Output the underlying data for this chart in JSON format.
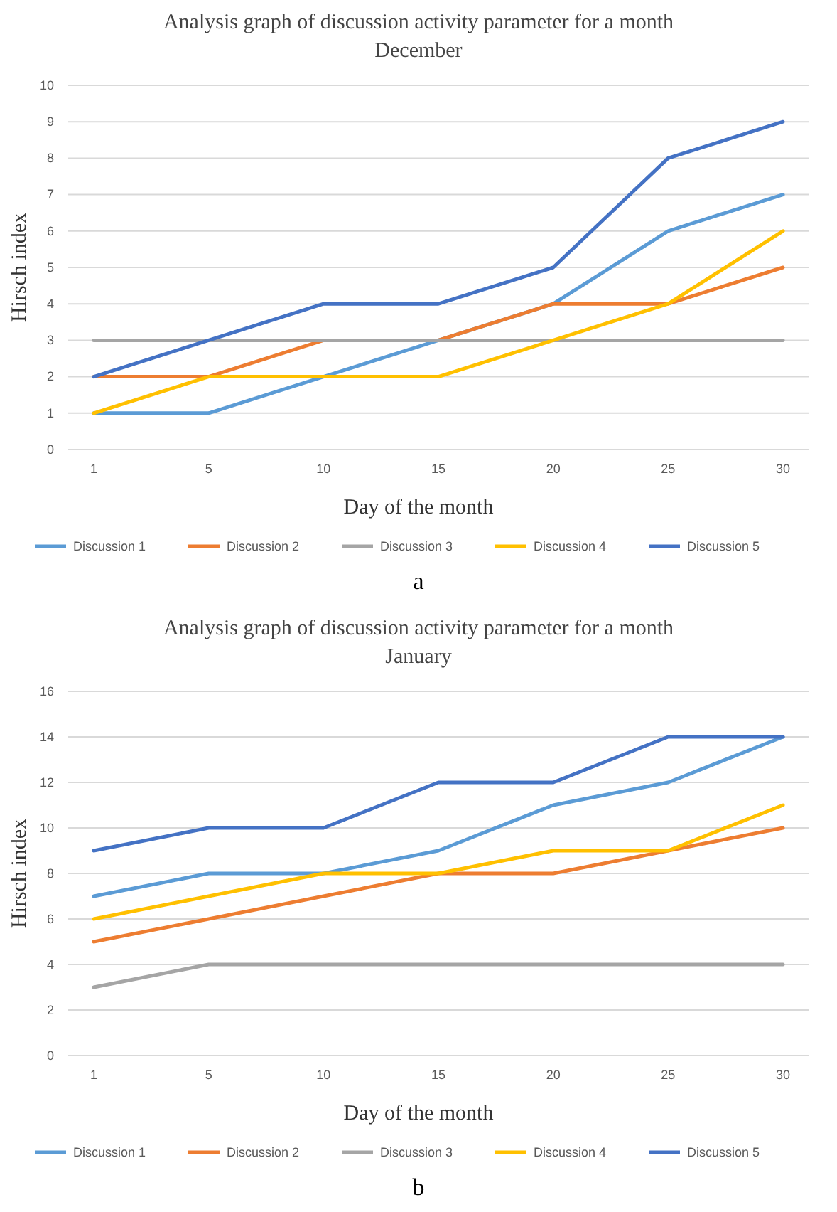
{
  "chart_data": [
    {
      "type": "line",
      "title": "Analysis graph of discussion activity parameter for a month",
      "subtitle": "December",
      "xlabel": "Day of the month",
      "ylabel": "Hirsch index",
      "categories": [
        "1",
        "5",
        "10",
        "15",
        "20",
        "25",
        "30"
      ],
      "ylim": [
        0,
        10
      ],
      "yticks": [
        0,
        1,
        2,
        3,
        4,
        5,
        6,
        7,
        8,
        9,
        10
      ],
      "grid": "y",
      "legend": "bottom",
      "marker": "none",
      "annotations": [
        "a"
      ],
      "series": [
        {
          "name": "Discussion 1",
          "color": "#5b9bd5",
          "values": [
            1,
            1,
            2,
            3,
            4,
            6,
            7
          ]
        },
        {
          "name": "Discussion 2",
          "color": "#ed7d31",
          "values": [
            2,
            2,
            3,
            3,
            4,
            4,
            5
          ]
        },
        {
          "name": "Discussion 3",
          "color": "#a5a5a5",
          "values": [
            3,
            3,
            3,
            3,
            3,
            3,
            3
          ]
        },
        {
          "name": "Discussion 4",
          "color": "#ffc000",
          "values": [
            1,
            2,
            2,
            2,
            3,
            4,
            6
          ]
        },
        {
          "name": "Discussion 5",
          "color": "#4472c4",
          "values": [
            2,
            3,
            4,
            4,
            5,
            8,
            9
          ]
        }
      ]
    },
    {
      "type": "line",
      "title": "Analysis graph of discussion activity parameter for a month",
      "subtitle": "January",
      "xlabel": "Day of the month",
      "ylabel": "Hirsch index",
      "categories": [
        "1",
        "5",
        "10",
        "15",
        "20",
        "25",
        "30"
      ],
      "ylim": [
        0,
        16
      ],
      "yticks": [
        0,
        2,
        4,
        6,
        8,
        10,
        12,
        14,
        16
      ],
      "grid": "y",
      "legend": "bottom",
      "marker": "none",
      "annotations": [
        "b"
      ],
      "series": [
        {
          "name": "Discussion 1",
          "color": "#5b9bd5",
          "values": [
            7,
            8,
            8,
            9,
            11,
            12,
            14
          ]
        },
        {
          "name": "Discussion 2",
          "color": "#ed7d31",
          "values": [
            5,
            6,
            7,
            8,
            8,
            9,
            10
          ]
        },
        {
          "name": "Discussion 3",
          "color": "#a5a5a5",
          "values": [
            3,
            4,
            4,
            4,
            4,
            4,
            4
          ]
        },
        {
          "name": "Discussion 4",
          "color": "#ffc000",
          "values": [
            6,
            7,
            8,
            8,
            9,
            9,
            11
          ]
        },
        {
          "name": "Discussion 5",
          "color": "#4472c4",
          "values": [
            9,
            10,
            10,
            12,
            12,
            14,
            14
          ]
        }
      ]
    }
  ]
}
